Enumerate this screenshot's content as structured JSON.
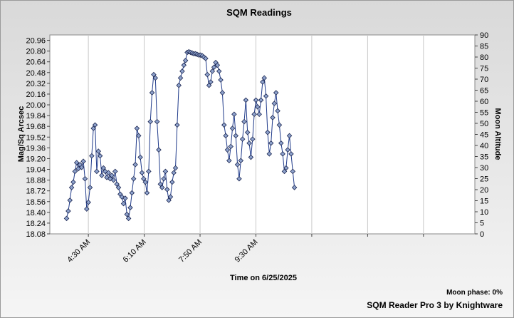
{
  "chart_data": {
    "type": "line",
    "title": "SQM Readings",
    "x_label": "Time on 6/25/2025",
    "y_label": "Mag/Sq Arcsec",
    "y2_label": "Moon Altitude",
    "annotations": [
      "Moon phase: 0%",
      "SQM Reader Pro 3 by Knightware"
    ],
    "xlim": [
      "03:21",
      "16:02"
    ],
    "xticks": [
      {
        "value": "04:30",
        "label": "4:30 AM"
      },
      {
        "value": "06:10",
        "label": "6:10 AM"
      },
      {
        "value": "07:50",
        "label": "7:50 AM"
      },
      {
        "value": "09:30",
        "label": "9:30 AM"
      },
      {
        "value": "11:10",
        "label": null
      },
      {
        "value": "12:50",
        "label": null
      },
      {
        "value": "14:30",
        "label": null
      }
    ],
    "ylim": [
      18.08,
      21.04
    ],
    "yticks": [
      18.08,
      18.24,
      {
        "value": 18.4,
        "label": "18.40"
      },
      18.56,
      18.72,
      18.88,
      19.04,
      {
        "value": 19.2,
        "label": "19.20"
      },
      19.36,
      19.52,
      19.68,
      19.84,
      {
        "value": 20,
        "label": "20.00"
      },
      20.16,
      20.32,
      20.48,
      20.64,
      {
        "value": 20.8,
        "label": "20.80"
      },
      20.96
    ],
    "y2lim": [
      0,
      90
    ],
    "y2ticks": [
      0,
      5,
      10,
      15,
      20,
      25,
      30,
      35,
      40,
      45,
      50,
      55,
      60,
      65,
      70,
      75,
      80,
      85,
      90
    ],
    "x_grid": true,
    "x": [
      "03:51",
      "03:54",
      "03:57",
      "04:00",
      "04:03",
      "04:06",
      "04:09",
      "04:12",
      "04:15",
      "04:18",
      "04:21",
      "04:24",
      "04:27",
      "04:30",
      "04:33",
      "04:36",
      "04:39",
      "04:42",
      "04:45",
      "04:48",
      "04:51",
      "04:54",
      "04:57",
      "05:00",
      "05:03",
      "05:06",
      "05:09",
      "05:12",
      "05:15",
      "05:18",
      "05:21",
      "05:24",
      "05:27",
      "05:30",
      "05:33",
      "05:36",
      "05:39",
      "05:42",
      "05:45",
      "05:48",
      "05:51",
      "05:54",
      "05:57",
      "06:00",
      "06:03",
      "06:06",
      "06:09",
      "06:12",
      "06:15",
      "06:18",
      "06:21",
      "06:24",
      "06:27",
      "06:30",
      "06:33",
      "06:36",
      "06:39",
      "06:42",
      "06:45",
      "06:48",
      "06:51",
      "06:54",
      "06:57",
      "07:00",
      "07:03",
      "07:06",
      "07:09",
      "07:12",
      "07:15",
      "07:18",
      "07:21",
      "07:24",
      "07:27",
      "07:30",
      "07:33",
      "07:36",
      "07:39",
      "07:42",
      "07:45",
      "07:48",
      "07:51",
      "07:54",
      "07:57",
      "08:00",
      "08:03",
      "08:06",
      "08:09",
      "08:12",
      "08:15",
      "08:18",
      "08:21",
      "08:24",
      "08:27",
      "08:30",
      "08:33",
      "08:36",
      "08:39",
      "08:42",
      "08:45",
      "08:48",
      "08:51",
      "08:54",
      "08:57",
      "09:00",
      "09:03",
      "09:06",
      "09:09",
      "09:12",
      "09:15",
      "09:18",
      "09:21",
      "09:24",
      "09:27",
      "09:30",
      "09:33",
      "09:36",
      "09:39",
      "09:42",
      "09:45",
      "09:48",
      "09:51",
      "09:54",
      "09:57",
      "10:00",
      "10:03",
      "10:06",
      "10:09",
      "10:12",
      "10:15",
      "10:18",
      "10:21",
      "10:24",
      "10:27",
      "10:30",
      "10:33",
      "10:36",
      "10:39"
    ],
    "series": [
      {
        "name": "SQM",
        "color": "#1f3a8a",
        "marker_color": "#8ea2cc",
        "values": [
          18.31,
          18.42,
          18.58,
          18.77,
          18.85,
          19.01,
          19.14,
          19.05,
          19.11,
          19.07,
          19.16,
          18.9,
          18.45,
          18.55,
          18.77,
          19.24,
          19.65,
          19.7,
          19.01,
          19.31,
          19.24,
          18.95,
          19.06,
          19.01,
          18.92,
          18.99,
          18.9,
          18.95,
          18.88,
          19.01,
          18.82,
          18.77,
          18.67,
          18.63,
          18.53,
          18.61,
          18.37,
          18.31,
          18.47,
          18.69,
          18.9,
          19.11,
          19.65,
          19.54,
          19.22,
          18.99,
          18.9,
          18.85,
          18.69,
          19.01,
          19.75,
          20.18,
          20.45,
          20.4,
          19.75,
          19.33,
          18.82,
          18.77,
          18.9,
          19.01,
          18.74,
          18.58,
          18.63,
          18.85,
          18.99,
          19.06,
          19.7,
          20.29,
          20.4,
          20.5,
          20.59,
          20.66,
          20.78,
          20.79,
          20.78,
          20.77,
          20.76,
          20.76,
          20.75,
          20.74,
          20.74,
          20.73,
          20.71,
          20.69,
          20.45,
          20.29,
          20.34,
          20.5,
          20.56,
          20.63,
          20.59,
          20.5,
          20.37,
          20.18,
          19.7,
          19.54,
          19.33,
          19.17,
          19.38,
          19.65,
          19.86,
          19.54,
          19.11,
          18.9,
          19.17,
          19.49,
          19.75,
          20.07,
          19.59,
          19.43,
          19.22,
          19.49,
          19.86,
          20.07,
          19.97,
          19.86,
          20.07,
          20.34,
          20.4,
          20.13,
          19.59,
          19.27,
          19.43,
          19.81,
          20.02,
          20.18,
          19.91,
          19.7,
          19.43,
          19.27,
          19.01,
          19.06,
          19.33,
          19.54,
          19.27,
          19.01,
          18.77
        ]
      }
    ]
  }
}
